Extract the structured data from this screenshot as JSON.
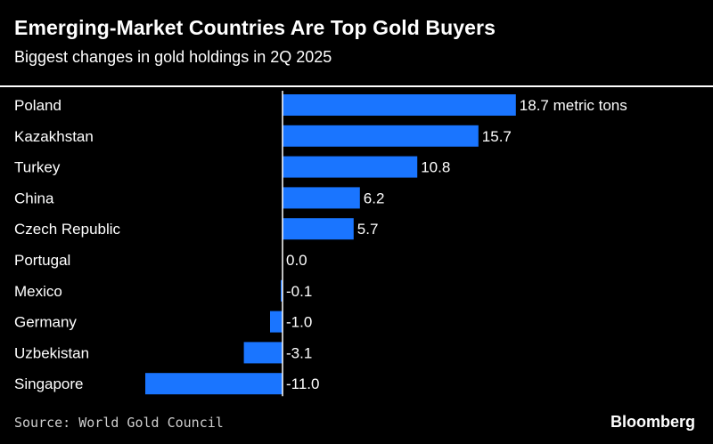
{
  "header": {
    "title": "Emerging-Market Countries Are Top Gold Buyers",
    "subtitle": "Biggest changes in gold holdings in 2Q 2025"
  },
  "chart_data": {
    "type": "bar",
    "orientation": "horizontal",
    "categories": [
      "Poland",
      "Kazakhstan",
      "Turkey",
      "China",
      "Czech Republic",
      "Portugal",
      "Mexico",
      "Germany",
      "Uzbekistan",
      "Singapore"
    ],
    "values": [
      18.7,
      15.7,
      10.8,
      6.2,
      5.7,
      0.0,
      -0.1,
      -1.0,
      -3.1,
      -11.0
    ],
    "data_labels": [
      "18.7 metric tons",
      "15.7",
      "10.8",
      "6.2",
      "5.7",
      "0.0",
      "-0.1",
      "-1.0",
      "-3.1",
      "-11.0"
    ],
    "unit": "metric tons",
    "xlim": [
      -11.0,
      18.7
    ],
    "grid": false,
    "legend": "none",
    "bar_color": "#1a75ff",
    "axis_color": "#ffffff"
  },
  "footer": {
    "source": "Source: World Gold Council",
    "brand": "Bloomberg"
  },
  "colors": {
    "background": "#000000",
    "text": "#ffffff",
    "bar": "#1a75ff",
    "source_text": "#cfcfcf"
  }
}
